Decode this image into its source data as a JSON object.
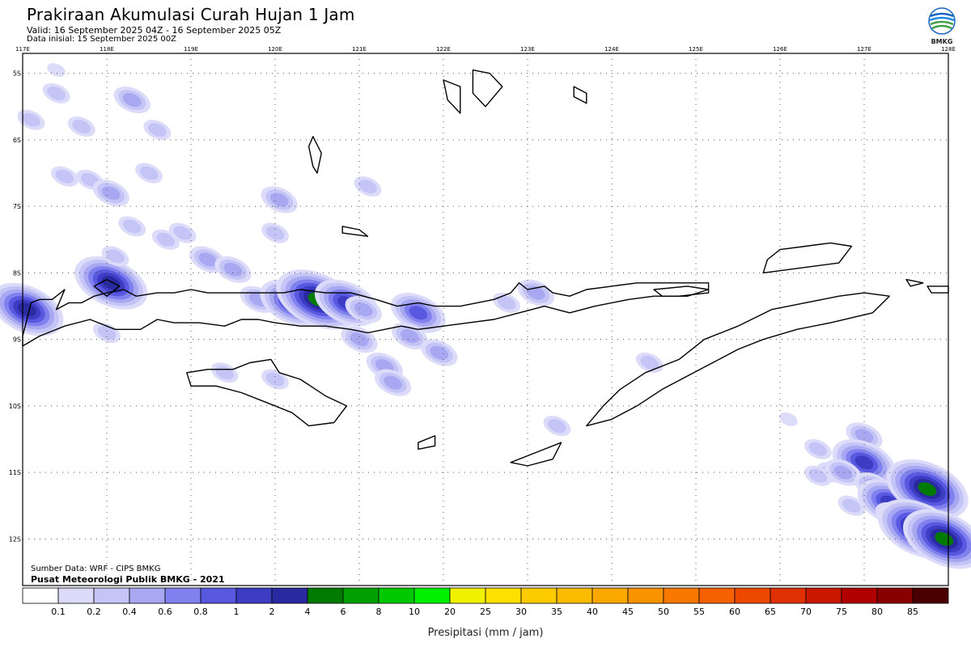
{
  "header": {
    "title": "Prakiraan Akumulasi Curah Hujan 1 Jam",
    "valid": "Valid: 16 September 2025 04Z - 16 September 2025 05Z",
    "initial": "Data inisial: 15 September 2025 00Z"
  },
  "logo": {
    "text": "BMKG"
  },
  "credits": {
    "source": "Sumber Data: WRF - CIPS BMKG",
    "org": "Pusat Meteorologi Publik BMKG - 2021"
  },
  "map": {
    "lon_range": [
      117,
      128
    ],
    "lat_range": [
      -12.7,
      -4.7
    ],
    "lon_ticks": [
      "117E",
      "118E",
      "119E",
      "120E",
      "121E",
      "122E",
      "123E",
      "124E",
      "125E",
      "126E",
      "127E",
      "128E"
    ],
    "lat_ticks": [
      "5S",
      "6S",
      "7S",
      "8S",
      "9S",
      "10S",
      "11S",
      "12S"
    ],
    "grid": "dotted"
  },
  "colorbar": {
    "label": "Presipitasi (mm / jam)",
    "ticks": [
      "0.1",
      "0.2",
      "0.4",
      "0.6",
      "0.8",
      "1",
      "2",
      "4",
      "6",
      "8",
      "10",
      "20",
      "25",
      "30",
      "35",
      "40",
      "45",
      "50",
      "55",
      "60",
      "65",
      "70",
      "75",
      "80",
      "85"
    ],
    "colors": [
      "#ffffff",
      "#dcdcfa",
      "#c4c4f6",
      "#a7a7f2",
      "#8080ee",
      "#5858e0",
      "#3c3cc4",
      "#2a2aa0",
      "#007a00",
      "#00a000",
      "#00c800",
      "#00f000",
      "#f0f000",
      "#fde000",
      "#fccc00",
      "#fbbb00",
      "#faa800",
      "#f99400",
      "#f87800",
      "#f56000",
      "#ec4800",
      "#de3000",
      "#ca1800",
      "#b00000",
      "#880000",
      "#4a0000",
      "#260000"
    ]
  },
  "precip": [
    {
      "lon": 117.05,
      "lat": -8.55,
      "mm": 2
    },
    {
      "lon": 117.1,
      "lat": -5.7,
      "mm": 0.2
    },
    {
      "lon": 117.4,
      "lat": -4.95,
      "mm": 0.1
    },
    {
      "lon": 117.4,
      "lat": -5.3,
      "mm": 0.2
    },
    {
      "lon": 117.7,
      "lat": -5.8,
      "mm": 0.2
    },
    {
      "lon": 117.5,
      "lat": -6.55,
      "mm": 0.2
    },
    {
      "lon": 117.8,
      "lat": -6.6,
      "mm": 0.2
    },
    {
      "lon": 118.05,
      "lat": -6.8,
      "mm": 0.4
    },
    {
      "lon": 118.5,
      "lat": -6.5,
      "mm": 0.2
    },
    {
      "lon": 118.3,
      "lat": -5.4,
      "mm": 0.4
    },
    {
      "lon": 118.6,
      "lat": -5.85,
      "mm": 0.2
    },
    {
      "lon": 118.05,
      "lat": -8.15,
      "mm": 2
    },
    {
      "lon": 118.0,
      "lat": -8.9,
      "mm": 0.2
    },
    {
      "lon": 118.1,
      "lat": -7.75,
      "mm": 0.2
    },
    {
      "lon": 118.3,
      "lat": -7.3,
      "mm": 0.2
    },
    {
      "lon": 118.7,
      "lat": -7.5,
      "mm": 0.2
    },
    {
      "lon": 118.9,
      "lat": -7.4,
      "mm": 0.2
    },
    {
      "lon": 119.2,
      "lat": -7.8,
      "mm": 0.4
    },
    {
      "lon": 119.5,
      "lat": -7.95,
      "mm": 0.4
    },
    {
      "lon": 120.05,
      "lat": -6.9,
      "mm": 0.4
    },
    {
      "lon": 120.0,
      "lat": -7.4,
      "mm": 0.2
    },
    {
      "lon": 121.1,
      "lat": -6.7,
      "mm": 0.2
    },
    {
      "lon": 119.8,
      "lat": -8.4,
      "mm": 0.4
    },
    {
      "lon": 120.2,
      "lat": -8.45,
      "mm": 1
    },
    {
      "lon": 120.5,
      "lat": -8.4,
      "mm": 4
    },
    {
      "lon": 120.85,
      "lat": -8.45,
      "mm": 1
    },
    {
      "lon": 121.05,
      "lat": -8.55,
      "mm": 0.4
    },
    {
      "lon": 121.0,
      "lat": -9.0,
      "mm": 0.4
    },
    {
      "lon": 121.3,
      "lat": -9.4,
      "mm": 0.4
    },
    {
      "lon": 121.4,
      "lat": -9.65,
      "mm": 0.4
    },
    {
      "lon": 121.7,
      "lat": -8.6,
      "mm": 0.8
    },
    {
      "lon": 121.6,
      "lat": -8.95,
      "mm": 0.4
    },
    {
      "lon": 121.95,
      "lat": -9.2,
      "mm": 0.4
    },
    {
      "lon": 119.4,
      "lat": -9.5,
      "mm": 0.2
    },
    {
      "lon": 120.0,
      "lat": -9.6,
      "mm": 0.2
    },
    {
      "lon": 123.1,
      "lat": -8.3,
      "mm": 0.4
    },
    {
      "lon": 122.75,
      "lat": -8.45,
      "mm": 0.2
    },
    {
      "lon": 124.45,
      "lat": -9.35,
      "mm": 0.2
    },
    {
      "lon": 123.35,
      "lat": -10.3,
      "mm": 0.2
    },
    {
      "lon": 126.1,
      "lat": -10.2,
      "mm": 0.1
    },
    {
      "lon": 126.45,
      "lat": -10.65,
      "mm": 0.2
    },
    {
      "lon": 126.6,
      "lat": -11.0,
      "mm": 0.2
    },
    {
      "lon": 127.0,
      "lat": -10.45,
      "mm": 0.4
    },
    {
      "lon": 127.0,
      "lat": -10.85,
      "mm": 1
    },
    {
      "lon": 126.75,
      "lat": -11.0,
      "mm": 0.4
    },
    {
      "lon": 126.45,
      "lat": -11.05,
      "mm": 0.2
    },
    {
      "lon": 127.1,
      "lat": -11.2,
      "mm": 0.4
    },
    {
      "lon": 127.3,
      "lat": -11.45,
      "mm": 1
    },
    {
      "lon": 127.35,
      "lat": -11.65,
      "mm": 0.4
    },
    {
      "lon": 127.75,
      "lat": -11.25,
      "mm": 4
    },
    {
      "lon": 127.65,
      "lat": -11.85,
      "mm": 4
    },
    {
      "lon": 127.95,
      "lat": -12.0,
      "mm": 4
    },
    {
      "lon": 126.85,
      "lat": -11.5,
      "mm": 0.2
    }
  ],
  "land": [
    {
      "name": "Lombok",
      "pts": [
        [
          117.0,
          -8.95
        ],
        [
          117.05,
          -8.7
        ],
        [
          117.1,
          -8.45
        ],
        [
          117.2,
          -8.4
        ],
        [
          117.35,
          -8.4
        ],
        [
          117.5,
          -8.25
        ],
        [
          117.4,
          -8.55
        ],
        [
          117.55,
          -8.45
        ],
        [
          117.7,
          -8.45
        ],
        [
          117.85,
          -8.35
        ],
        [
          118.0,
          -8.3
        ],
        [
          118.2,
          -8.25
        ],
        [
          118.35,
          -8.35
        ],
        [
          118.6,
          -8.3
        ],
        [
          118.8,
          -8.3
        ],
        [
          119.0,
          -8.25
        ],
        [
          119.2,
          -8.3
        ],
        [
          119.4,
          -8.3
        ],
        [
          119.8,
          -8.3
        ],
        [
          120.1,
          -8.3
        ],
        [
          120.3,
          -8.25
        ],
        [
          120.6,
          -8.3
        ],
        [
          120.9,
          -8.3
        ],
        [
          121.2,
          -8.4
        ],
        [
          121.45,
          -8.5
        ],
        [
          121.7,
          -8.45
        ],
        [
          121.9,
          -8.5
        ],
        [
          122.2,
          -8.5
        ],
        [
          122.6,
          -8.4
        ],
        [
          122.8,
          -8.3
        ],
        [
          122.9,
          -8.15
        ],
        [
          123.0,
          -8.25
        ],
        [
          123.2,
          -8.2
        ],
        [
          123.3,
          -8.3
        ],
        [
          123.5,
          -8.35
        ],
        [
          123.7,
          -8.25
        ],
        [
          124.0,
          -8.2
        ],
        [
          124.3,
          -8.15
        ],
        [
          124.5,
          -8.15
        ],
        [
          124.8,
          -8.15
        ],
        [
          125.15,
          -8.15
        ],
        [
          125.15,
          -8.3
        ],
        [
          124.8,
          -8.35
        ],
        [
          124.5,
          -8.35
        ],
        [
          124.2,
          -8.4
        ],
        [
          123.8,
          -8.5
        ],
        [
          123.5,
          -8.6
        ],
        [
          123.2,
          -8.5
        ],
        [
          122.9,
          -8.6
        ],
        [
          122.6,
          -8.7
        ],
        [
          122.3,
          -8.75
        ],
        [
          122.0,
          -8.8
        ],
        [
          121.7,
          -8.85
        ],
        [
          121.5,
          -8.8
        ],
        [
          121.3,
          -8.85
        ],
        [
          121.1,
          -8.9
        ],
        [
          120.9,
          -8.85
        ],
        [
          120.6,
          -8.8
        ],
        [
          120.3,
          -8.8
        ],
        [
          120.0,
          -8.75
        ],
        [
          119.8,
          -8.7
        ],
        [
          119.6,
          -8.7
        ],
        [
          119.4,
          -8.8
        ],
        [
          119.1,
          -8.75
        ],
        [
          118.8,
          -8.75
        ],
        [
          118.6,
          -8.7
        ],
        [
          118.4,
          -8.85
        ],
        [
          118.1,
          -8.85
        ],
        [
          117.8,
          -8.7
        ],
        [
          117.5,
          -8.8
        ],
        [
          117.2,
          -8.95
        ],
        [
          117.0,
          -9.1
        ]
      ]
    },
    {
      "name": "Sumba",
      "pts": [
        [
          118.95,
          -9.5
        ],
        [
          119.2,
          -9.45
        ],
        [
          119.5,
          -9.45
        ],
        [
          119.7,
          -9.35
        ],
        [
          119.95,
          -9.3
        ],
        [
          120.05,
          -9.5
        ],
        [
          120.3,
          -9.6
        ],
        [
          120.6,
          -9.85
        ],
        [
          120.85,
          -10.0
        ],
        [
          120.7,
          -10.25
        ],
        [
          120.4,
          -10.3
        ],
        [
          120.2,
          -10.1
        ],
        [
          119.9,
          -9.95
        ],
        [
          119.6,
          -9.8
        ],
        [
          119.3,
          -9.7
        ],
        [
          119.0,
          -9.7
        ]
      ]
    },
    {
      "name": "Timor",
      "pts": [
        [
          123.7,
          -10.3
        ],
        [
          123.9,
          -10.0
        ],
        [
          124.1,
          -9.75
        ],
        [
          124.4,
          -9.5
        ],
        [
          124.8,
          -9.3
        ],
        [
          125.1,
          -9.0
        ],
        [
          125.5,
          -8.8
        ],
        [
          125.9,
          -8.55
        ],
        [
          126.3,
          -8.45
        ],
        [
          126.7,
          -8.35
        ],
        [
          127.0,
          -8.3
        ],
        [
          127.3,
          -8.35
        ],
        [
          127.1,
          -8.6
        ],
        [
          126.6,
          -8.75
        ],
        [
          126.2,
          -8.85
        ],
        [
          125.8,
          -9.0
        ],
        [
          125.5,
          -9.15
        ],
        [
          125.2,
          -9.35
        ],
        [
          124.9,
          -9.55
        ],
        [
          124.6,
          -9.75
        ],
        [
          124.3,
          -10.0
        ],
        [
          124.0,
          -10.2
        ]
      ]
    },
    {
      "name": "Wetar",
      "pts": [
        [
          126.0,
          -7.65
        ],
        [
          126.3,
          -7.6
        ],
        [
          126.6,
          -7.55
        ],
        [
          126.85,
          -7.6
        ],
        [
          126.7,
          -7.85
        ],
        [
          126.4,
          -7.9
        ],
        [
          126.1,
          -7.95
        ],
        [
          125.8,
          -8.0
        ],
        [
          125.85,
          -7.8
        ]
      ]
    },
    {
      "name": "Rote",
      "pts": [
        [
          122.8,
          -10.85
        ],
        [
          123.1,
          -10.7
        ],
        [
          123.4,
          -10.55
        ],
        [
          123.3,
          -10.8
        ],
        [
          123.0,
          -10.9
        ]
      ]
    },
    {
      "name": "Sawu",
      "pts": [
        [
          121.7,
          -10.55
        ],
        [
          121.9,
          -10.45
        ],
        [
          121.9,
          -10.6
        ],
        [
          121.7,
          -10.65
        ]
      ]
    },
    {
      "name": "Selayar",
      "pts": [
        [
          120.45,
          -5.95
        ],
        [
          120.55,
          -6.2
        ],
        [
          120.5,
          -6.5
        ],
        [
          120.45,
          -6.4
        ],
        [
          120.4,
          -6.1
        ]
      ]
    },
    {
      "name": "Kalao",
      "pts": [
        [
          120.8,
          -7.3
        ],
        [
          121.0,
          -7.35
        ],
        [
          121.1,
          -7.45
        ],
        [
          120.8,
          -7.4
        ]
      ]
    },
    {
      "name": "Buton",
      "pts": [
        [
          122.0,
          -5.1
        ],
        [
          122.2,
          -5.2
        ],
        [
          122.2,
          -5.6
        ],
        [
          122.05,
          -5.4
        ]
      ]
    },
    {
      "name": "Muna",
      "pts": [
        [
          122.35,
          -4.95
        ],
        [
          122.55,
          -5.0
        ],
        [
          122.7,
          -5.2
        ],
        [
          122.5,
          -5.5
        ],
        [
          122.35,
          -5.3
        ]
      ]
    },
    {
      "name": "Wakatobi",
      "pts": [
        [
          123.55,
          -5.2
        ],
        [
          123.7,
          -5.3
        ],
        [
          123.7,
          -5.45
        ],
        [
          123.55,
          -5.35
        ]
      ]
    },
    {
      "name": "Sumbawa-w",
      "pts": [
        [
          117.85,
          -8.2
        ],
        [
          118.0,
          -8.1
        ],
        [
          118.15,
          -8.2
        ],
        [
          118.0,
          -8.35
        ]
      ]
    },
    {
      "name": "Alor",
      "pts": [
        [
          124.5,
          -8.25
        ],
        [
          124.9,
          -8.2
        ],
        [
          125.15,
          -8.25
        ],
        [
          124.9,
          -8.35
        ],
        [
          124.6,
          -8.35
        ]
      ]
    },
    {
      "name": "Kisar",
      "pts": [
        [
          127.75,
          -8.2
        ],
        [
          128.0,
          -8.2
        ],
        [
          128.0,
          -8.3
        ],
        [
          127.8,
          -8.3
        ]
      ]
    },
    {
      "name": "Moa",
      "pts": [
        [
          127.5,
          -8.1
        ],
        [
          127.7,
          -8.15
        ],
        [
          127.55,
          -8.2
        ]
      ]
    }
  ]
}
